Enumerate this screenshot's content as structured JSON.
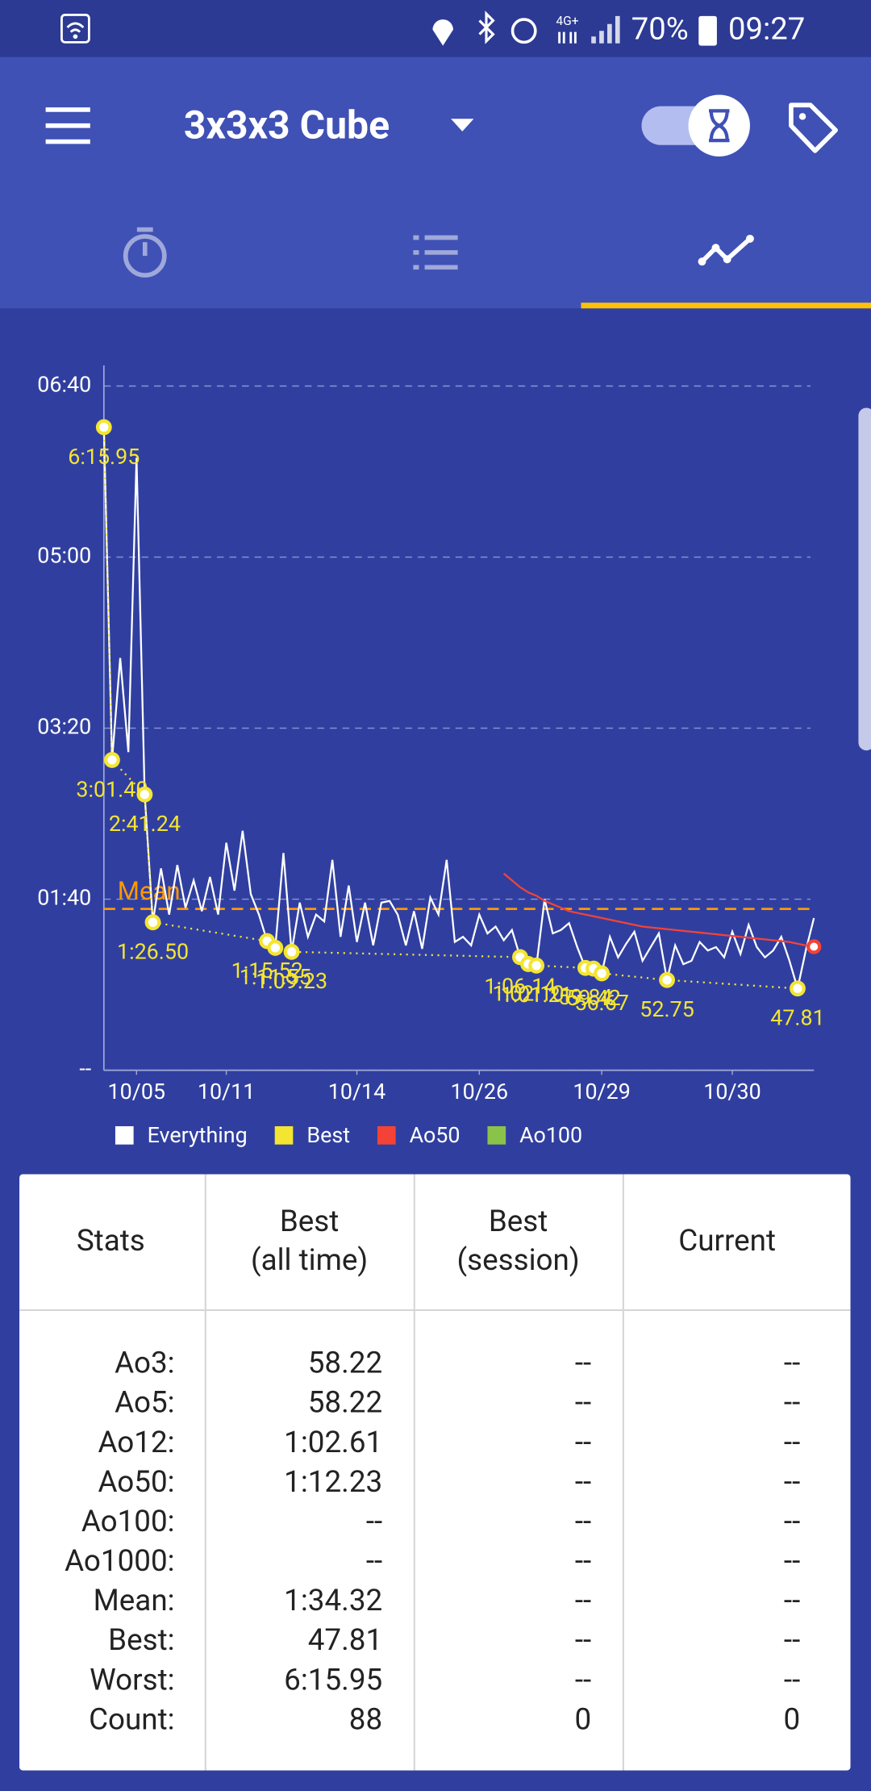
{
  "status_bar": {
    "network": "4G+",
    "battery": "70%",
    "time": "09:27"
  },
  "app_bar": {
    "title": "3x3x3 Cube"
  },
  "chart_data": {
    "type": "line",
    "x": [
      0,
      1,
      2,
      3,
      4,
      5,
      6,
      7,
      8,
      9,
      10,
      11,
      12,
      13,
      14,
      15,
      16,
      17,
      18,
      19,
      20,
      21,
      22,
      23,
      24,
      25,
      26,
      27,
      28,
      29,
      30,
      31,
      32,
      33,
      34,
      35,
      36,
      37,
      38,
      39,
      40,
      41,
      42,
      43,
      44,
      45,
      46,
      47,
      48,
      49,
      50,
      51,
      52,
      53,
      54,
      55,
      56,
      57,
      58,
      59,
      60,
      61,
      62,
      63,
      64,
      65,
      66,
      67,
      68,
      69,
      70,
      71,
      72,
      73,
      74,
      75,
      76,
      77,
      78,
      79,
      80,
      81,
      82,
      83,
      84,
      85,
      86,
      87
    ],
    "xlim": [
      0,
      87
    ],
    "xticks": [
      {
        "value": 4,
        "label": "10/05"
      },
      {
        "value": 15,
        "label": "10/11"
      },
      {
        "value": 31,
        "label": "10/14"
      },
      {
        "value": 46,
        "label": "10/26"
      },
      {
        "value": 61,
        "label": "10/29"
      },
      {
        "value": 77,
        "label": "10/30"
      }
    ],
    "ylim": [
      0,
      412
    ],
    "yticks": [
      {
        "value": 0,
        "label": "--"
      },
      {
        "value": 100,
        "label": "01:40"
      },
      {
        "value": 200,
        "label": "03:20"
      },
      {
        "value": 300,
        "label": "05:00"
      },
      {
        "value": 400,
        "label": "06:40"
      }
    ],
    "grid": true,
    "legend": "bottom",
    "series": [
      {
        "name": "Everything",
        "color": "#ffffff",
        "values": [
          375.95,
          181.4,
          241,
          186,
          358,
          161.24,
          86.5,
          118,
          91,
          120,
          95,
          111,
          93,
          113,
          91,
          133,
          105,
          140,
          103,
          91,
          75.52,
          71.55,
          127,
          69.23,
          98,
          78,
          91,
          87,
          123,
          78,
          108,
          75,
          98,
          73,
          98,
          99,
          91,
          73,
          93,
          71,
          101,
          91,
          123,
          75,
          78,
          73,
          91,
          80,
          84,
          76,
          82,
          66.14,
          62.1,
          61.21,
          100,
          80,
          82,
          86,
          72,
          59.84,
          59.42,
          56.67,
          78,
          66,
          74,
          81,
          64,
          72,
          80,
          52.75,
          73,
          62,
          64,
          75,
          70,
          72,
          66,
          81,
          68,
          85,
          72,
          66,
          70,
          78,
          64,
          47.81,
          70,
          89
        ]
      },
      {
        "name": "Best",
        "color": "#f4e531",
        "x": [
          0,
          1,
          5,
          6,
          20,
          21,
          23,
          51,
          52,
          53,
          59,
          60,
          61,
          69,
          85
        ],
        "values": [
          375.95,
          181.4,
          161.24,
          86.5,
          75.52,
          71.55,
          69.23,
          66.14,
          62.1,
          61.21,
          59.84,
          59.42,
          56.67,
          52.75,
          47.81
        ],
        "value_labels": [
          "6:15.95",
          "3:01.40",
          "2:41.24",
          "1:26.50",
          "1:15.52",
          "1:11.55",
          "1:09.23",
          "1:06.14",
          "1:02.10",
          "1:01.21",
          "59.84",
          "59.42",
          "56.67",
          "52.75",
          "47.81"
        ]
      },
      {
        "name": "Ao50",
        "color": "#f44336",
        "x": [
          49,
          50,
          51,
          52,
          53,
          54,
          55,
          56,
          57,
          58,
          59,
          60,
          61,
          62,
          63,
          64,
          65,
          66,
          67,
          68,
          69,
          70,
          71,
          72,
          73,
          74,
          75,
          76,
          77,
          78,
          79,
          80,
          81,
          82,
          83,
          84,
          85,
          86,
          87
        ],
        "values": [
          115,
          111,
          107,
          104,
          102,
          99,
          97,
          95,
          93,
          92,
          91,
          90,
          89,
          88,
          87,
          86,
          85,
          84,
          83.5,
          83,
          82.5,
          82,
          81.5,
          81,
          80.5,
          80,
          79.5,
          79,
          78.5,
          78,
          77.5,
          77,
          76.5,
          76,
          75.5,
          75,
          74,
          73,
          72.23
        ]
      },
      {
        "name": "Ao100",
        "color": "#8bc34a",
        "x": [],
        "values": []
      }
    ],
    "mean": {
      "label": "Mean",
      "value": 94.32,
      "color": "#ff9800"
    }
  },
  "stats_table": {
    "headers": [
      [
        "Stats"
      ],
      [
        "Best",
        "(all time)"
      ],
      [
        "Best",
        "(session)"
      ],
      [
        "Current"
      ]
    ],
    "rows": [
      [
        "Ao3:",
        "58.22",
        "--",
        "--"
      ],
      [
        "Ao5:",
        "58.22",
        "--",
        "--"
      ],
      [
        "Ao12:",
        "1:02.61",
        "--",
        "--"
      ],
      [
        "Ao50:",
        "1:12.23",
        "--",
        "--"
      ],
      [
        "Ao100:",
        "--",
        "--",
        "--"
      ],
      [
        "Ao1000:",
        "--",
        "--",
        "--"
      ],
      [
        "Mean:",
        "1:34.32",
        "--",
        "--"
      ],
      [
        "Best:",
        "47.81",
        "--",
        "--"
      ],
      [
        "Worst:",
        "6:15.95",
        "--",
        "--"
      ],
      [
        "Count:",
        "88",
        "0",
        "0"
      ]
    ]
  }
}
